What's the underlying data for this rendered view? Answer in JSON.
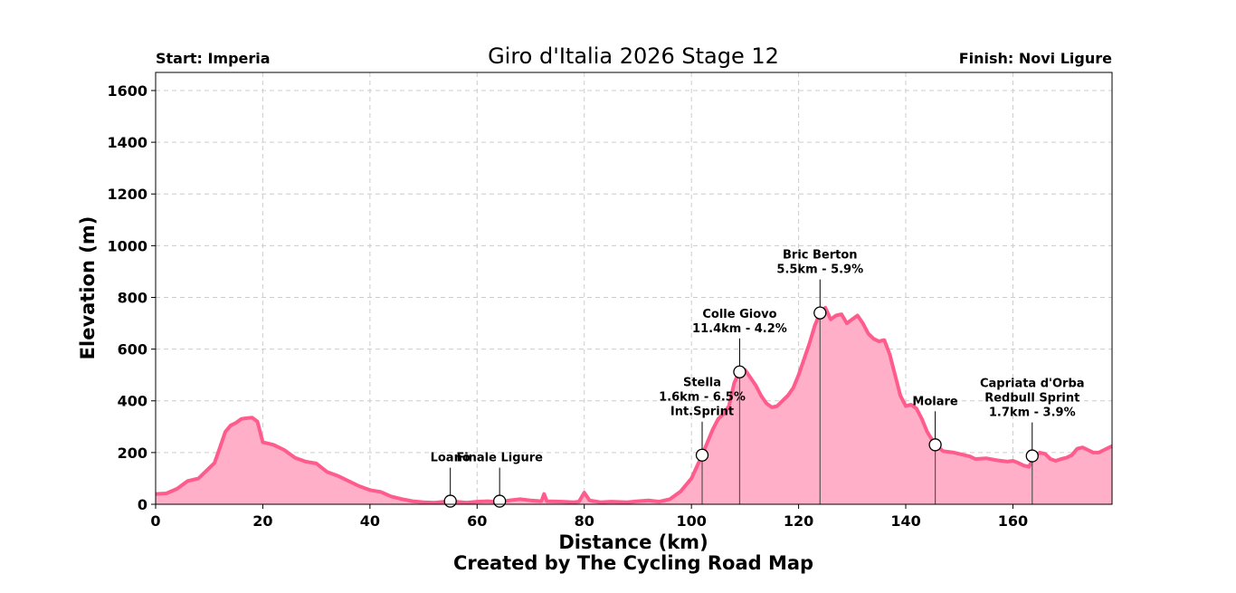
{
  "chart_data": {
    "type": "area",
    "title": "Giro d'Italia 2026 Stage 12",
    "start_label": "Start: Imperia",
    "finish_label": "Finish: Novi Ligure",
    "xlabel": "Distance (km)",
    "ylabel": "Elevation (m)",
    "credit": "Created by The Cycling Road Map",
    "xlim": [
      0,
      178.5
    ],
    "ylim": [
      0,
      1670
    ],
    "x_ticks": [
      0,
      20,
      40,
      60,
      80,
      100,
      120,
      140,
      160
    ],
    "y_ticks": [
      0,
      200,
      400,
      600,
      800,
      1000,
      1200,
      1400,
      1600
    ],
    "grid": true,
    "colors": {
      "line": "#ff5b8c",
      "fill": "#ffafc8",
      "grid": "#cccccc",
      "marker_line": "#555555"
    },
    "series": [
      {
        "values": [
          [
            0,
            40
          ],
          [
            2,
            42
          ],
          [
            4,
            60
          ],
          [
            6,
            90
          ],
          [
            8,
            100
          ],
          [
            10,
            140
          ],
          [
            11,
            160
          ],
          [
            12,
            220
          ],
          [
            13,
            280
          ],
          [
            14,
            305
          ],
          [
            15,
            315
          ],
          [
            16,
            330
          ],
          [
            17,
            333
          ],
          [
            18,
            335
          ],
          [
            19,
            320
          ],
          [
            20,
            240
          ],
          [
            22,
            230
          ],
          [
            24,
            210
          ],
          [
            26,
            180
          ],
          [
            28,
            165
          ],
          [
            30,
            158
          ],
          [
            32,
            125
          ],
          [
            34,
            110
          ],
          [
            36,
            90
          ],
          [
            38,
            70
          ],
          [
            40,
            55
          ],
          [
            42,
            48
          ],
          [
            44,
            30
          ],
          [
            46,
            20
          ],
          [
            48,
            12
          ],
          [
            50,
            8
          ],
          [
            52,
            6
          ],
          [
            54,
            10
          ],
          [
            55,
            15
          ],
          [
            56,
            10
          ],
          [
            58,
            6
          ],
          [
            60,
            10
          ],
          [
            62,
            12
          ],
          [
            64,
            8
          ],
          [
            66,
            15
          ],
          [
            68,
            20
          ],
          [
            70,
            15
          ],
          [
            72,
            12
          ],
          [
            72.5,
            40
          ],
          [
            73,
            12
          ],
          [
            76,
            10
          ],
          [
            78,
            8
          ],
          [
            79,
            10
          ],
          [
            80,
            45
          ],
          [
            81,
            15
          ],
          [
            83,
            8
          ],
          [
            85,
            10
          ],
          [
            88,
            8
          ],
          [
            90,
            12
          ],
          [
            92,
            15
          ],
          [
            94,
            10
          ],
          [
            96,
            20
          ],
          [
            98,
            50
          ],
          [
            100,
            100
          ],
          [
            102,
            190
          ],
          [
            103,
            240
          ],
          [
            104,
            290
          ],
          [
            105,
            330
          ],
          [
            106,
            350
          ],
          [
            107,
            380
          ],
          [
            108,
            470
          ],
          [
            109,
            515
          ],
          [
            110,
            520
          ],
          [
            111,
            490
          ],
          [
            112,
            460
          ],
          [
            113,
            420
          ],
          [
            114,
            390
          ],
          [
            115,
            375
          ],
          [
            116,
            380
          ],
          [
            117,
            400
          ],
          [
            118,
            420
          ],
          [
            119,
            450
          ],
          [
            120,
            500
          ],
          [
            121,
            560
          ],
          [
            122,
            620
          ],
          [
            123,
            690
          ],
          [
            124,
            740
          ],
          [
            125,
            760
          ],
          [
            126,
            715
          ],
          [
            127,
            730
          ],
          [
            128,
            735
          ],
          [
            129,
            700
          ],
          [
            130,
            715
          ],
          [
            131,
            730
          ],
          [
            132,
            700
          ],
          [
            133,
            660
          ],
          [
            134,
            640
          ],
          [
            135,
            630
          ],
          [
            136,
            635
          ],
          [
            137,
            580
          ],
          [
            138,
            500
          ],
          [
            139,
            420
          ],
          [
            140,
            380
          ],
          [
            141,
            385
          ],
          [
            142,
            370
          ],
          [
            143,
            330
          ],
          [
            144,
            280
          ],
          [
            145.5,
            230
          ],
          [
            147,
            205
          ],
          [
            149,
            200
          ],
          [
            152,
            185
          ],
          [
            153,
            175
          ],
          [
            155,
            178
          ],
          [
            157,
            170
          ],
          [
            159,
            165
          ],
          [
            160,
            168
          ],
          [
            161,
            160
          ],
          [
            162,
            150
          ],
          [
            163,
            145
          ],
          [
            164,
            185
          ],
          [
            165,
            200
          ],
          [
            166,
            195
          ],
          [
            167,
            175
          ],
          [
            168,
            168
          ],
          [
            169,
            175
          ],
          [
            170,
            180
          ],
          [
            171,
            190
          ],
          [
            172,
            215
          ],
          [
            173,
            220
          ],
          [
            174,
            210
          ],
          [
            175,
            200
          ],
          [
            176,
            200
          ],
          [
            177,
            210
          ],
          [
            178.5,
            225
          ]
        ]
      }
    ],
    "annotations": [
      {
        "x": 55.0,
        "y": 12,
        "lines": [
          "Loano"
        ]
      },
      {
        "x": 64.2,
        "y": 12,
        "lines": [
          "Finale Ligure"
        ]
      },
      {
        "x": 102.0,
        "y": 190,
        "lines": [
          "Stella",
          "1.6km - 6.5%",
          "Int.Sprint"
        ]
      },
      {
        "x": 109.0,
        "y": 512,
        "lines": [
          "Colle Giovo",
          "11.4km - 4.2%"
        ]
      },
      {
        "x": 124.0,
        "y": 740,
        "lines": [
          "Bric Berton",
          "5.5km - 5.9%"
        ]
      },
      {
        "x": 145.5,
        "y": 230,
        "lines": [
          "Molare"
        ]
      },
      {
        "x": 163.6,
        "y": 187,
        "lines": [
          "Capriata d'Orba",
          "Redbull Sprint",
          "1.7km - 3.9%"
        ]
      }
    ]
  }
}
